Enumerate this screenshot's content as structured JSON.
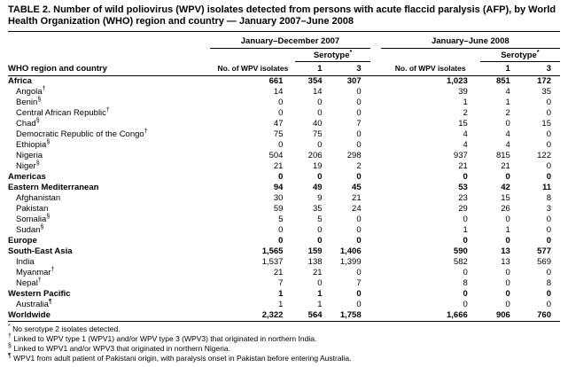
{
  "title": "TABLE 2. Number of wild poliovirus (WPV) isolates detected from persons with acute flaccid paralysis (AFP), by World Health Organization (WHO) region and country — January 2007–June 2008",
  "header": {
    "row_header": "WHO region and country",
    "period_2007": "January–December 2007",
    "period_2008": "January–June 2008",
    "isolates": "No. of WPV isolates",
    "serotype": "Serotype",
    "serotype_marker": "*",
    "serotype_1": "1",
    "serotype_3": "3"
  },
  "rows": [
    {
      "label": "Africa",
      "bold": true,
      "values": [
        "661",
        "354",
        "307",
        "1,023",
        "851",
        "172"
      ]
    },
    {
      "label": "Angola",
      "marker": "†",
      "bold": false,
      "values": [
        "14",
        "14",
        "0",
        "39",
        "4",
        "35"
      ]
    },
    {
      "label": "Benin",
      "marker": "§",
      "bold": false,
      "values": [
        "0",
        "0",
        "0",
        "1",
        "1",
        "0"
      ]
    },
    {
      "label": "Central African Republic",
      "marker": "†",
      "bold": false,
      "values": [
        "0",
        "0",
        "0",
        "2",
        "2",
        "0"
      ]
    },
    {
      "label": "Chad",
      "marker": "§",
      "bold": false,
      "values": [
        "47",
        "40",
        "7",
        "15",
        "0",
        "15"
      ]
    },
    {
      "label": "Democratic Republic of the Congo",
      "marker": "†",
      "bold": false,
      "values": [
        "75",
        "75",
        "0",
        "4",
        "4",
        "0"
      ]
    },
    {
      "label": "Ethiopia",
      "marker": "§",
      "bold": false,
      "values": [
        "0",
        "0",
        "0",
        "4",
        "4",
        "0"
      ]
    },
    {
      "label": "Nigeria",
      "bold": false,
      "values": [
        "504",
        "206",
        "298",
        "937",
        "815",
        "122"
      ]
    },
    {
      "label": "Niger",
      "marker": "§",
      "bold": false,
      "values": [
        "21",
        "19",
        "2",
        "21",
        "21",
        "0"
      ]
    },
    {
      "label": "Americas",
      "bold": true,
      "values": [
        "0",
        "0",
        "0",
        "0",
        "0",
        "0"
      ]
    },
    {
      "label": "Eastern Mediterranean",
      "bold": true,
      "values": [
        "94",
        "49",
        "45",
        "53",
        "42",
        "11"
      ]
    },
    {
      "label": "Afghanistan",
      "bold": false,
      "values": [
        "30",
        "9",
        "21",
        "23",
        "15",
        "8"
      ]
    },
    {
      "label": "Pakistan",
      "bold": false,
      "values": [
        "59",
        "35",
        "24",
        "29",
        "26",
        "3"
      ]
    },
    {
      "label": "Somalia",
      "marker": "§",
      "bold": false,
      "values": [
        "5",
        "5",
        "0",
        "0",
        "0",
        "0"
      ]
    },
    {
      "label": "Sudan",
      "marker": "§",
      "bold": false,
      "values": [
        "0",
        "0",
        "0",
        "1",
        "1",
        "0"
      ]
    },
    {
      "label": "Europe",
      "bold": true,
      "values": [
        "0",
        "0",
        "0",
        "0",
        "0",
        "0"
      ]
    },
    {
      "label": "South-East Asia",
      "bold": true,
      "values": [
        "1,565",
        "159",
        "1,406",
        "590",
        "13",
        "577"
      ]
    },
    {
      "label": "India",
      "bold": false,
      "values": [
        "1,537",
        "138",
        "1,399",
        "582",
        "13",
        "569"
      ]
    },
    {
      "label": "Myanmar",
      "marker": "†",
      "bold": false,
      "values": [
        "21",
        "21",
        "0",
        "0",
        "0",
        "0"
      ]
    },
    {
      "label": "Nepal",
      "marker": "†",
      "bold": false,
      "values": [
        "7",
        "0",
        "7",
        "8",
        "0",
        "8"
      ]
    },
    {
      "label": "Western Pacific",
      "bold": true,
      "values": [
        "1",
        "1",
        "0",
        "0",
        "0",
        "0"
      ]
    },
    {
      "label": "Australia",
      "marker": "¶",
      "bold": false,
      "values": [
        "1",
        "1",
        "0",
        "0",
        "0",
        "0"
      ]
    },
    {
      "label": "Worldwide",
      "bold": true,
      "values": [
        "2,322",
        "564",
        "1,758",
        "1,666",
        "906",
        "760"
      ]
    }
  ],
  "footnotes": [
    {
      "marker": "*",
      "text": "No serotype 2 isolates detected."
    },
    {
      "marker": "†",
      "text": "Linked to WPV type 1 (WPV1) and/or WPV type 3 (WPV3) that originated in northern India."
    },
    {
      "marker": "§",
      "text": "Linked to WPV1 and/or WPV3 that originated in northern Nigeria."
    },
    {
      "marker": "¶",
      "text": "WPV1 from adult patient of Pakistani origin, with paralysis onset in Pakistan before entering Australia."
    }
  ]
}
